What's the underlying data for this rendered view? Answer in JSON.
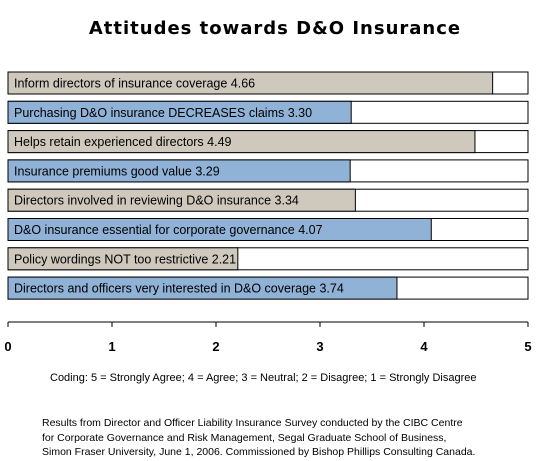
{
  "chart_data": {
    "type": "bar",
    "orientation": "horizontal",
    "title": "Attitudes towards D&O Insurance",
    "categories": [
      "Inform directors of insurance coverage",
      "Purchasing D&O insurance DECREASES claims",
      "Helps retain experienced directors",
      "Insurance premiums good value",
      "Directors involved in reviewing D&O insurance",
      "D&O insurance essential for corporate governance",
      "Policy wordings NOT too restrictive",
      "Directors and officers very interested in D&O coverage"
    ],
    "values": [
      4.66,
      3.3,
      4.49,
      3.29,
      3.34,
      4.07,
      2.21,
      3.74
    ],
    "value_labels": [
      "4.66",
      "3.30",
      "4.49",
      "3.29",
      "3.34",
      "4.07",
      "2.21",
      "3.74"
    ],
    "bar_colors": [
      "#cfc9bd",
      "#8fb2d6",
      "#cfc9bd",
      "#8fb2d6",
      "#cfc9bd",
      "#8fb2d6",
      "#cfc9bd",
      "#8fb2d6"
    ],
    "xlim": [
      0,
      5
    ],
    "xticks": [
      "0",
      "1",
      "2",
      "3",
      "4",
      "5"
    ],
    "grid": false,
    "legend": "none"
  },
  "coding_note": "Coding:  5 = Strongly Agree;  4 = Agree;  3 = Neutral;  2 = Disagree;  1 = Strongly Disagree",
  "source_note": [
    "Results from Director and Officer Liability Insurance Survey conducted by the CIBC Centre",
    "for Corporate Governance and Risk Management, Segal Graduate School of Business,",
    "Simon Fraser University, June 1, 2006.   Commissioned by Bishop Phillips Consulting Canada."
  ],
  "colors": {
    "bar_outline": "#000000",
    "axis": "#000000",
    "background": "#ffffff"
  }
}
